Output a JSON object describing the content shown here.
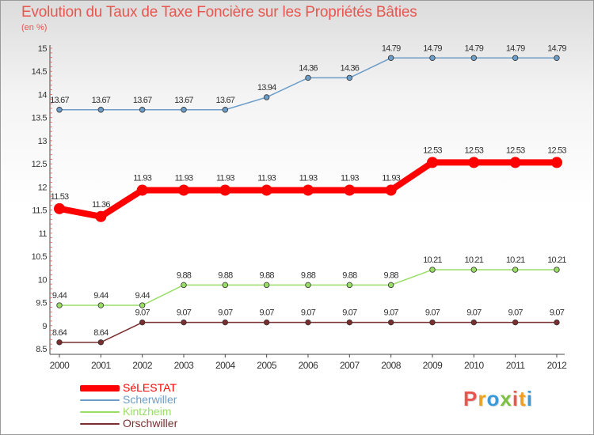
{
  "title": "Evolution du Taux de Taxe Foncière sur les Propriétés Bâties",
  "unit": "(en %)",
  "logo": {
    "text": "Proxiti",
    "letter_colors": [
      "#e8564f",
      "#f0a020",
      "#3a9ad9",
      "#7dc142",
      "#e8564f",
      "#f0a020",
      "#3a9ad9"
    ]
  },
  "colors": {
    "title": "#e8564f",
    "axis_text": "#333333",
    "tick_marks": "#e8564f"
  },
  "chart_data": {
    "type": "line",
    "title": "Evolution du Taux de Taxe Foncière sur les Propriétés Bâties",
    "ylabel": "(en %)",
    "x": [
      "2000",
      "2001",
      "2002",
      "2003",
      "2004",
      "2005",
      "2006",
      "2007",
      "2008",
      "2009",
      "2010",
      "2011",
      "2012"
    ],
    "yticks": [
      "8.5",
      "9",
      "9.5",
      "10",
      "10.5",
      "11",
      "11.5",
      "12",
      "12.5",
      "13",
      "13.5",
      "14",
      "14.5",
      "15"
    ],
    "ylim": [
      8.5,
      15
    ],
    "grid": false,
    "legend_position": "bottom-left",
    "series": [
      {
        "name": "SéLESTAT",
        "color": "#ff0000",
        "values": [
          11.53,
          11.36,
          11.93,
          11.93,
          11.93,
          11.93,
          11.93,
          11.93,
          11.93,
          12.53,
          12.53,
          12.53,
          12.53
        ],
        "labels": [
          "11.53",
          "11.36",
          "11.93",
          "11.93",
          "11.93",
          "11.93",
          "11.93",
          "11.93",
          "11.93",
          "12.53",
          "12.53",
          "12.53",
          "12.53"
        ]
      },
      {
        "name": "Scherwiller",
        "color": "#6b9dc8",
        "values": [
          13.67,
          13.67,
          13.67,
          13.67,
          13.67,
          13.94,
          14.36,
          14.36,
          14.79,
          14.79,
          14.79,
          14.79,
          14.79
        ],
        "labels": [
          "13.67",
          "13.67",
          "13.67",
          "13.67",
          "13.67",
          "13.94",
          "14.36",
          "14.36",
          "14.79",
          "14.79",
          "14.79",
          "14.79",
          "14.79"
        ]
      },
      {
        "name": "Kintzheim",
        "color": "#99dd66",
        "values": [
          9.44,
          9.44,
          9.44,
          9.88,
          9.88,
          9.88,
          9.88,
          9.88,
          9.88,
          10.21,
          10.21,
          10.21,
          10.21
        ],
        "labels": [
          "9.44",
          "9.44",
          "9.44",
          "9.88",
          "9.88",
          "9.88",
          "9.88",
          "9.88",
          "9.88",
          "10.21",
          "10.21",
          "10.21",
          "10.21"
        ]
      },
      {
        "name": "Orschwiller",
        "color": "#7a2e2e",
        "values": [
          8.64,
          8.64,
          9.07,
          9.07,
          9.07,
          9.07,
          9.07,
          9.07,
          9.07,
          9.07,
          9.07,
          9.07,
          9.07
        ],
        "labels": [
          "8.64",
          "8.64",
          "9.07",
          "9.07",
          "9.07",
          "9.07",
          "9.07",
          "9.07",
          "9.07",
          "9.07",
          "9.07",
          "9.07",
          "9.07"
        ]
      }
    ]
  }
}
